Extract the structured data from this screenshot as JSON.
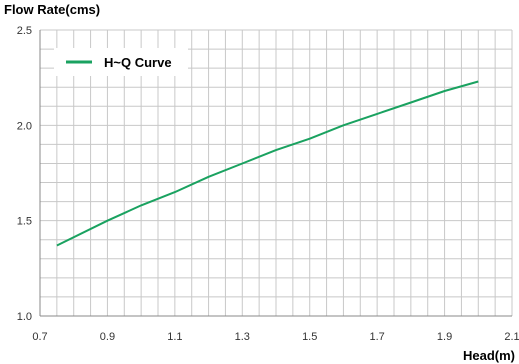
{
  "chart_data": {
    "type": "line",
    "title": "",
    "xlabel": "Head(m)",
    "ylabel": "Flow Rate(cms)",
    "xlim": [
      0.7,
      2.1
    ],
    "ylim": [
      1.0,
      2.5
    ],
    "x_ticks": [
      "0.7",
      "0.9",
      "1.1",
      "1.3",
      "1.5",
      "1.7",
      "1.9",
      "2.1"
    ],
    "y_ticks": [
      "1.0",
      "1.5",
      "2.0",
      "2.5"
    ],
    "grid": true,
    "legend_position": "top-left",
    "series": [
      {
        "name": "H~Q Curve",
        "color": "#1aa260",
        "x": [
          0.75,
          0.9,
          1.0,
          1.1,
          1.2,
          1.3,
          1.4,
          1.5,
          1.6,
          1.7,
          1.8,
          1.9,
          2.0
        ],
        "y": [
          1.37,
          1.5,
          1.58,
          1.65,
          1.73,
          1.8,
          1.87,
          1.93,
          2.0,
          2.06,
          2.12,
          2.18,
          2.23
        ]
      }
    ]
  }
}
